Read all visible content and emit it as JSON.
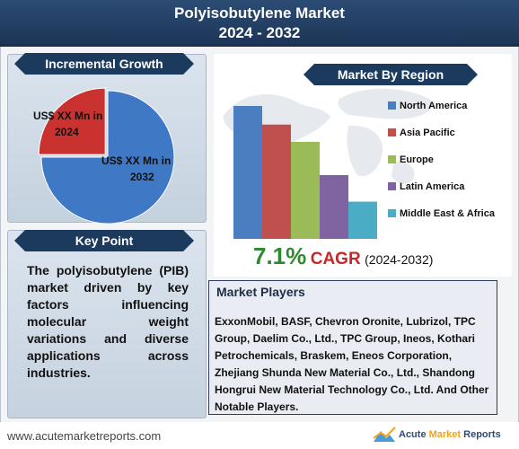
{
  "header": {
    "title": "Polyisobutylene Market",
    "subtitle": "2024 - 2032"
  },
  "left_panel": {
    "ribbon": "Incremental Growth",
    "slice_2024_label": "US$ XX Mn in 2024",
    "slice_2032_label": "US$ XX Mn in 2032"
  },
  "key_point": {
    "ribbon": "Key Point",
    "text": "The polyisobutylene (PIB) market driven by key factors influencing molecular weight variations and diverse applications across industries."
  },
  "region": {
    "ribbon": "Market By Region"
  },
  "cagr": {
    "value": "7.1%",
    "label": "CAGR",
    "years": "(2024-2032)"
  },
  "players": {
    "title": "Market Players",
    "text": "ExxonMobil, BASF, Chevron Oronite, Lubrizol, TPC Group, Daelim Co., Ltd., TPC Group, Ineos, Kothari Petrochemicals, Braskem, Eneos Corporation, Zhejiang Shunda New Material Co., Ltd., Shandong Hongrui New Material Technology Co., Ltd. And Other Notable Players."
  },
  "footer": {
    "url": "www.acutemarketreports.com",
    "logo_word1": "Acute",
    "logo_word2": "Market",
    "logo_word3": "Reports"
  },
  "colors": {
    "north_america": "#4a7ec0",
    "asia_pacific": "#c0504d",
    "europe": "#9bbb59",
    "latin_america": "#8064a2",
    "middle_east_africa": "#4bacc6",
    "pie_2032": "#3f78c4",
    "pie_2024": "#c9322f"
  },
  "chart_data": [
    {
      "type": "pie",
      "title": "",
      "labels": [
        "US$ XX Mn in 2024",
        "US$ XX Mn in 2032"
      ],
      "values": [
        25,
        75
      ]
    },
    {
      "type": "bar",
      "title": "Market By Region",
      "categories": [
        "North America",
        "Asia Pacific",
        "Europe",
        "Latin America",
        "Middle East & Africa"
      ],
      "values": [
        100,
        86,
        73,
        48,
        28
      ],
      "legend_position": "right"
    }
  ]
}
